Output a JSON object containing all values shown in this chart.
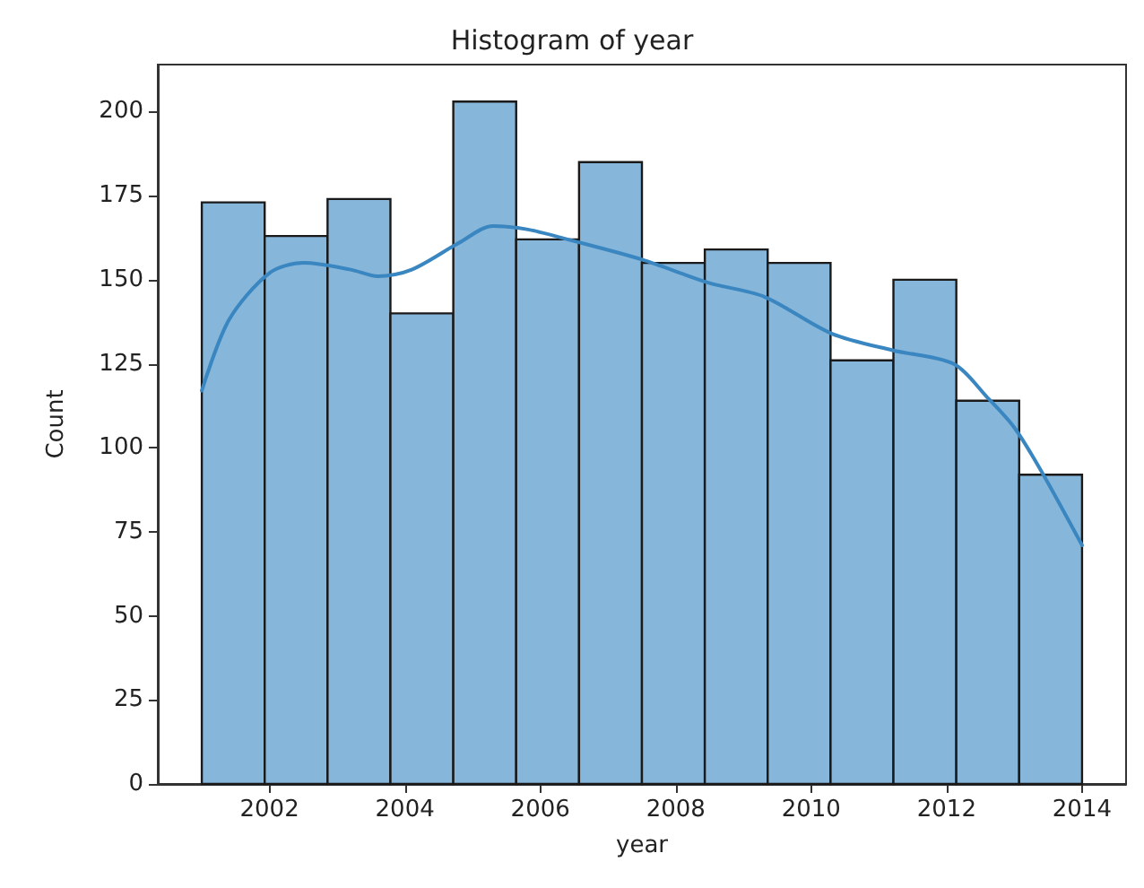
{
  "chart_data": {
    "type": "histogram",
    "title": "Histogram of year",
    "xlabel": "year",
    "ylabel": "Count",
    "bins": [
      2001,
      2001.9286,
      2002.8571,
      2003.7857,
      2004.7143,
      2005.6429,
      2006.5714,
      2007.5,
      2008.4286,
      2009.3571,
      2010.2857,
      2011.2143,
      2012.1429,
      2013.0714,
      2014
    ],
    "values": [
      173,
      163,
      174,
      140,
      203,
      162,
      185,
      155,
      159,
      155,
      126,
      150,
      114,
      92
    ],
    "color": "#86b6da",
    "series": [
      {
        "type": "line",
        "color": "#3a86c0",
        "x": [
          2001.0,
          2001.4,
          2002.0,
          2002.5,
          2003.2,
          2003.6,
          2004.1,
          2004.8,
          2005.3,
          2005.8,
          2006.4,
          2007.5,
          2008.5,
          2009.3,
          2010.3,
          2011.2,
          2012.1,
          2012.6,
          2013.0,
          2013.4,
          2014.0
        ],
        "values": [
          117,
          138,
          152,
          155,
          153,
          151,
          153,
          161,
          166,
          165,
          162,
          156,
          149,
          145,
          134,
          129,
          125,
          115,
          106,
          93,
          71
        ]
      }
    ],
    "xlim": [
      2000.35,
      2014.65
    ],
    "xticks": [
      2002,
      2004,
      2006,
      2008,
      2010,
      2012,
      2014
    ],
    "ylim": [
      0,
      214
    ],
    "yticks": [
      0,
      25,
      50,
      75,
      100,
      125,
      150,
      175,
      200
    ],
    "grid": false,
    "marker": "none",
    "line_style": "solid"
  }
}
